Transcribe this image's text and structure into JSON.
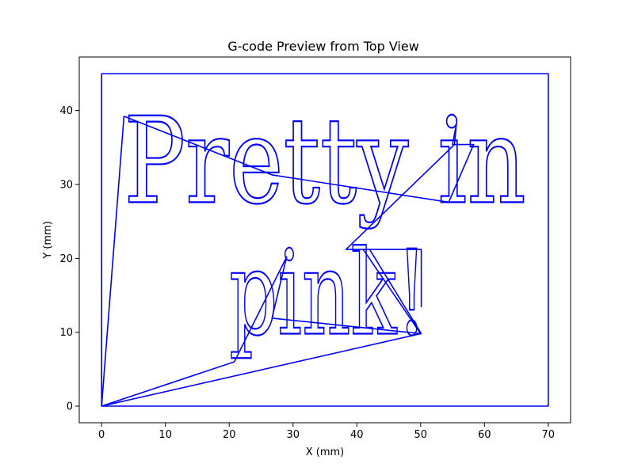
{
  "chart_data": {
    "type": "line",
    "title": "G-code Preview from Top View",
    "xlabel": "X (mm)",
    "ylabel": "Y (mm)",
    "xlim": [
      -3.5,
      73.5
    ],
    "ylim": [
      -2.25,
      47.25
    ],
    "xticks": [
      0,
      10,
      20,
      30,
      40,
      50,
      60,
      70
    ],
    "yticks": [
      0,
      10,
      20,
      30,
      40
    ],
    "grid": false,
    "series": [
      {
        "color": "#0000ff",
        "x": [
          0,
          0,
          70,
          70,
          0,
          0,
          20.8,
          29.0,
          26.7,
          50.1,
          42.0,
          38.3,
          55.3,
          55.6,
          55.0,
          58.3,
          54.4,
          26.7,
          3.6,
          3.5,
          0,
          50.0,
          41.0,
          41.5,
          50.1,
          50.1
        ],
        "y": [
          0,
          45,
          45,
          0,
          0,
          0,
          6.0,
          20.2,
          11.9,
          9.8,
          21.2,
          21.2,
          35.4,
          38.2,
          35.4,
          35.4,
          27.6,
          31.3,
          39.2,
          39.2,
          0,
          9.8,
          21.2,
          21.2,
          21.2,
          13.4
        ]
      }
    ],
    "annotations": [
      {
        "text": "Pretty in",
        "x_start": 3.5,
        "x_end": 66.5,
        "baseline": 27.6,
        "cap_height": 39.2
      },
      {
        "text": "pink!",
        "x_start": 20.0,
        "x_end": 51.0,
        "baseline": 9.8,
        "cap_height": 21.2
      }
    ]
  }
}
